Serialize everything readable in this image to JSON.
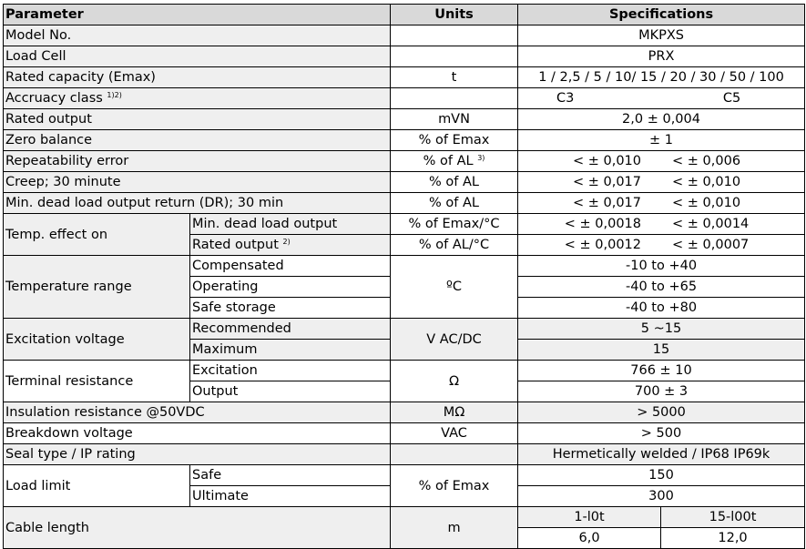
{
  "header": {
    "parameter": "Parameter",
    "units": "Units",
    "specifications": "Specifications"
  },
  "rows": {
    "model": {
      "label": "Model No.",
      "spec": "MKPXS"
    },
    "load_cell": {
      "label": "Load Cell",
      "spec": "PRX"
    },
    "capacity": {
      "label": "Rated capacity (Emax)",
      "unit": "t",
      "spec": "1 / 2,5 / 5 / 10/ 15 / 20 / 30 / 50 / 100"
    },
    "accuracy": {
      "label": "Accruacy class",
      "sup": "1)2)",
      "spec_a": "C3",
      "spec_b": "C5"
    },
    "rated_output": {
      "label": "Rated output",
      "unit": "mVN",
      "spec": "2,0 ± 0,004"
    },
    "zero_balance": {
      "label": "Zero balance",
      "unit": "% of Emax",
      "spec": "± 1"
    },
    "repeatability": {
      "label": "Repeatability error",
      "unit": "% of AL",
      "unit_sup": "3)",
      "spec_a": "< ± 0,010",
      "spec_b": "< ± 0,006"
    },
    "creep": {
      "label": "Creep; 30 minute",
      "unit": "% of AL",
      "spec_a": "< ± 0,017",
      "spec_b": "< ± 0,010"
    },
    "dead_load": {
      "label": "Min. dead load output return (DR); 30 min",
      "unit": "% of AL",
      "spec_a": "< ± 0,017",
      "spec_b": "< ± 0,010"
    },
    "temp_effect": {
      "label": "Temp. effect on",
      "min_dead": {
        "label": "Min. dead load output",
        "unit": "% of Emax/°C",
        "spec_a": "< ± 0,0018",
        "spec_b": "< ± 0,0014"
      },
      "rated": {
        "label": "Rated output",
        "sup": "2)",
        "unit": "% of AL/°C",
        "spec_a": "< ± 0,0012",
        "spec_b": "< ± 0,0007"
      }
    },
    "temp_range": {
      "label": "Temperature range",
      "unit": "ºC",
      "compensated": {
        "label": "Compensated",
        "spec": "-10 to +40"
      },
      "operating": {
        "label": "Operating",
        "spec": "-40 to +65"
      },
      "safe_storage": {
        "label": "Safe storage",
        "spec": "-40 to +80"
      }
    },
    "excitation": {
      "label": "Excitation voltage",
      "unit": "V AC/DC",
      "recommended": {
        "label": "Recommended",
        "spec": "5 ~15"
      },
      "maximum": {
        "label": "Maximum",
        "spec": "15"
      }
    },
    "terminal": {
      "label": "Terminal resistance",
      "unit": "Ω",
      "excitation": {
        "label": "Excitation",
        "spec": "766 ± 10"
      },
      "output": {
        "label": "Output",
        "spec": "700 ± 3"
      }
    },
    "insulation": {
      "label": "Insulation resistance @50VDC",
      "unit": "MΩ",
      "spec": "> 5000"
    },
    "breakdown": {
      "label": "Breakdown voltage",
      "unit": "VAC",
      "spec": "> 500"
    },
    "seal": {
      "label": "Seal type / IP rating",
      "spec": "Hermetically welded / IP68 IP69k"
    },
    "load_limit": {
      "label": "Load limit",
      "unit": "% of Emax",
      "safe": {
        "label": "Safe",
        "spec": "150"
      },
      "ultimate": {
        "label": "Ultimate",
        "spec": "300"
      }
    },
    "cable": {
      "label": "Cable length",
      "unit": "m",
      "range_a": "1-l0t",
      "range_b": "15-l00t",
      "value_a": "6,0",
      "value_b": "12,0"
    }
  }
}
